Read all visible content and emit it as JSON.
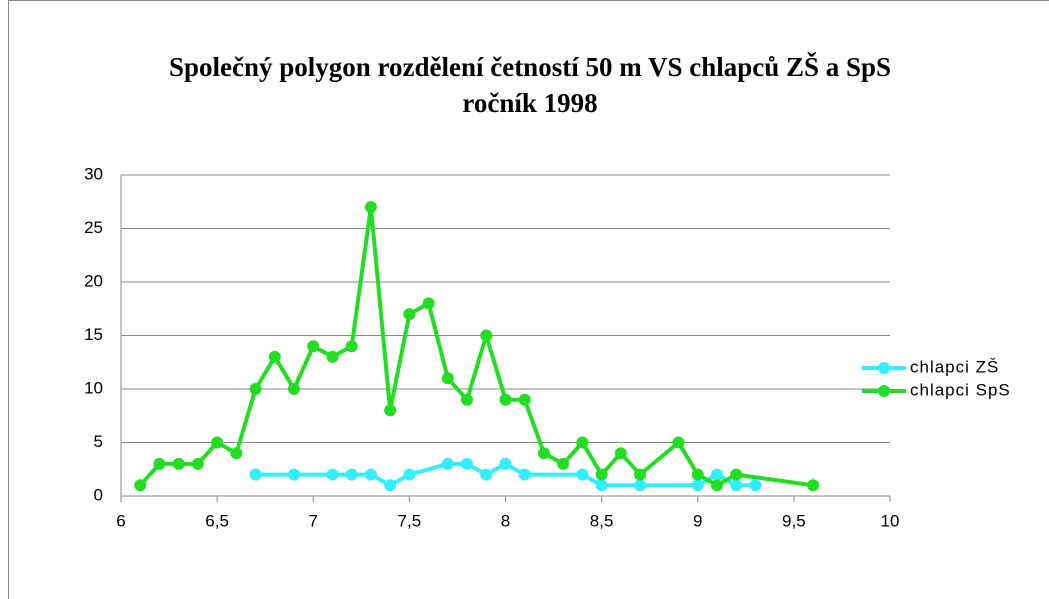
{
  "chart_data": {
    "type": "line",
    "title": [
      "Společný polygon rozdělení četností 50 m VS chlapců ZŠ a SpS",
      "ročník 1998"
    ],
    "xlim": [
      6,
      10
    ],
    "xticks": [
      6,
      {
        "value": 6.5,
        "label": "6,5"
      },
      7,
      {
        "value": 7.5,
        "label": "7,5"
      },
      8,
      {
        "value": 8.5,
        "label": "8,5"
      },
      9,
      {
        "value": 9.5,
        "label": "9,5"
      },
      10
    ],
    "ylim": [
      0,
      30
    ],
    "yticks": [
      0,
      5,
      10,
      15,
      20,
      25,
      30
    ],
    "grid": true,
    "legend": "right",
    "series": [
      {
        "name": "chlapci ZŠ",
        "color": "#33eeff",
        "x": [
          6.7,
          6.9,
          7.1,
          7.2,
          7.3,
          7.4,
          7.5,
          7.7,
          7.8,
          7.9,
          8.0,
          8.1,
          8.4,
          8.5,
          8.7,
          9.0,
          9.1,
          9.2,
          9.3
        ],
        "values": [
          2,
          2,
          2,
          2,
          2,
          1,
          2,
          3,
          3,
          2,
          3,
          2,
          2,
          1,
          1,
          1,
          2,
          1,
          1
        ]
      },
      {
        "name": "chlapci SpS",
        "color": "#22dd22",
        "x": [
          6.1,
          6.2,
          6.3,
          6.4,
          6.5,
          6.6,
          6.7,
          6.8,
          6.9,
          7.0,
          7.1,
          7.2,
          7.3,
          7.4,
          7.5,
          7.6,
          7.7,
          7.8,
          7.9,
          8.0,
          8.1,
          8.2,
          8.3,
          8.4,
          8.5,
          8.6,
          8.7,
          8.9,
          9.0,
          9.1,
          9.2,
          9.6
        ],
        "values": [
          1,
          3,
          3,
          3,
          5,
          4,
          10,
          13,
          10,
          14,
          13,
          14,
          27,
          8,
          17,
          18,
          11,
          9,
          15,
          9,
          9,
          4,
          3,
          5,
          2,
          4,
          2,
          5,
          2,
          1,
          2,
          1
        ]
      }
    ]
  }
}
